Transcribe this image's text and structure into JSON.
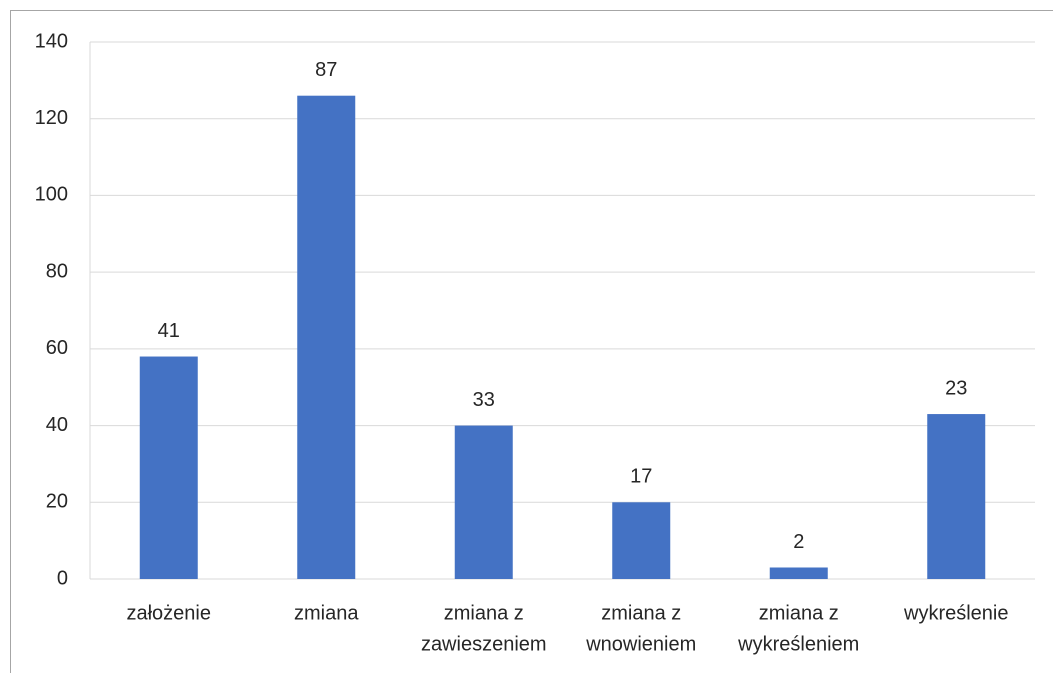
{
  "chart_data": {
    "type": "bar",
    "categories": [
      [
        "założenie"
      ],
      [
        "zmiana"
      ],
      [
        "zmiana z",
        "zawieszeniem"
      ],
      [
        "zmiana z",
        "wnowieniem"
      ],
      [
        "zmiana z",
        "wykreśleniem"
      ],
      [
        "wykreślenie"
      ]
    ],
    "values": [
      58,
      126,
      40,
      20,
      3,
      43
    ],
    "annotations": [
      "41",
      "87",
      "33",
      "17",
      "2",
      "23"
    ],
    "color": "#4472c4",
    "ylim": [
      0,
      140
    ],
    "yticks": [
      0,
      20,
      40,
      60,
      80,
      100,
      120,
      140
    ],
    "grid": true
  }
}
